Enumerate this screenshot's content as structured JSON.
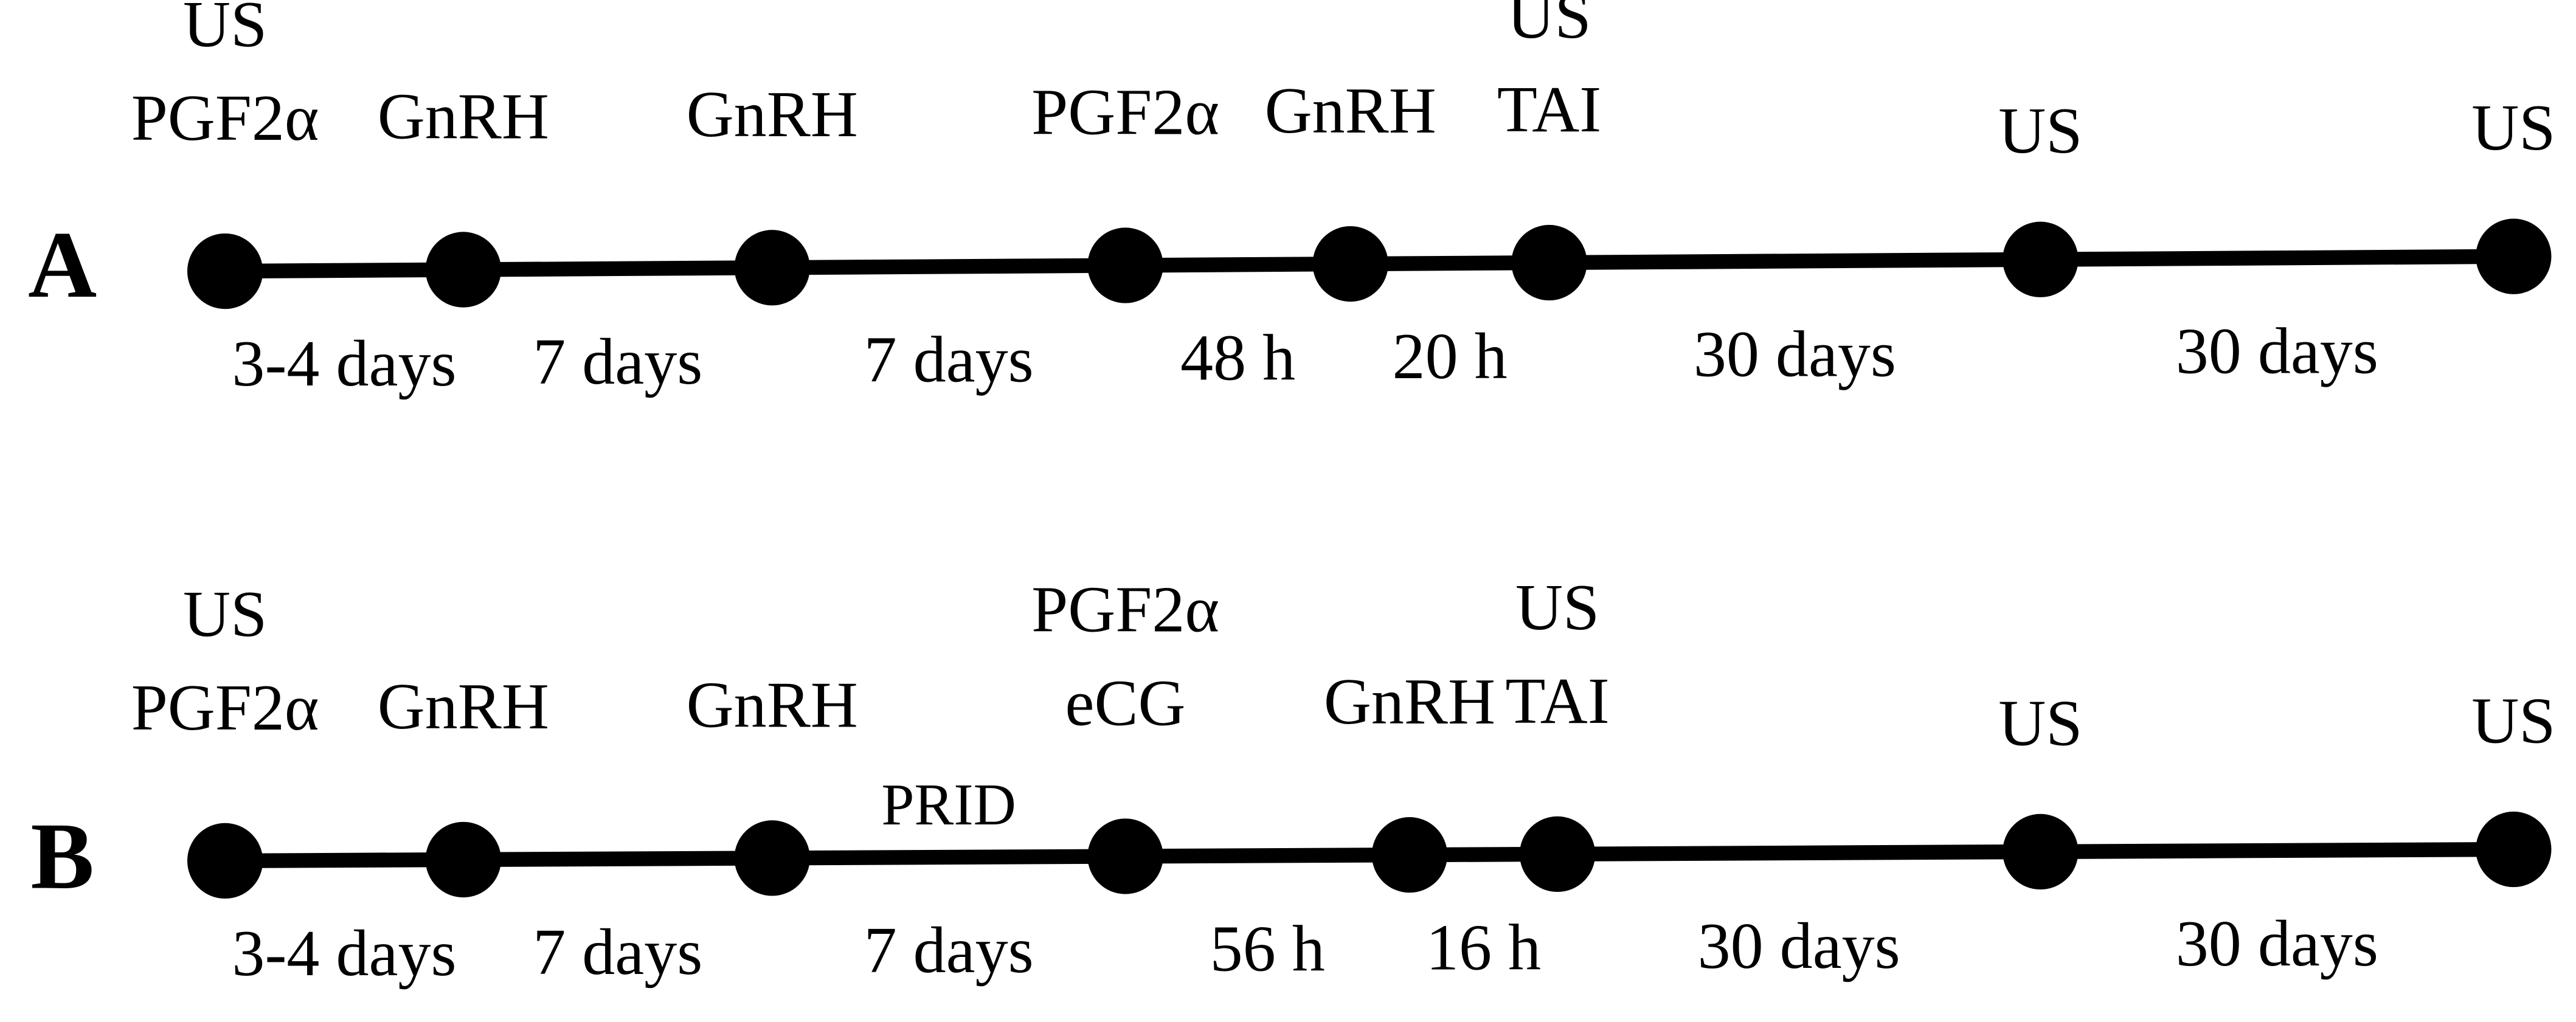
{
  "panels": [
    {
      "label": "A",
      "events": [
        [
          "US",
          "PGF2α"
        ],
        [
          "GnRH"
        ],
        [
          "GnRH"
        ],
        [
          "PGF2α"
        ],
        [
          "GnRH"
        ],
        [
          "US",
          "TAI"
        ],
        [
          "US"
        ],
        [
          "US"
        ]
      ],
      "intervals": [
        "3-4 days",
        "7 days",
        "7 days",
        "48 h",
        "20 h",
        "30 days",
        "30 days"
      ]
    },
    {
      "label": "B",
      "events": [
        [
          "US",
          "PGF2α"
        ],
        [
          "GnRH"
        ],
        [
          "GnRH"
        ],
        [
          "PGF2α",
          "eCG"
        ],
        [
          "GnRH"
        ],
        [
          "US",
          "TAI"
        ],
        [
          "US"
        ],
        [
          "US"
        ]
      ],
      "intervals": [
        "3-4 days",
        "7 days",
        "7 days",
        "56 h",
        "16 h",
        "30 days",
        "30 days"
      ],
      "note": "PRID"
    }
  ]
}
